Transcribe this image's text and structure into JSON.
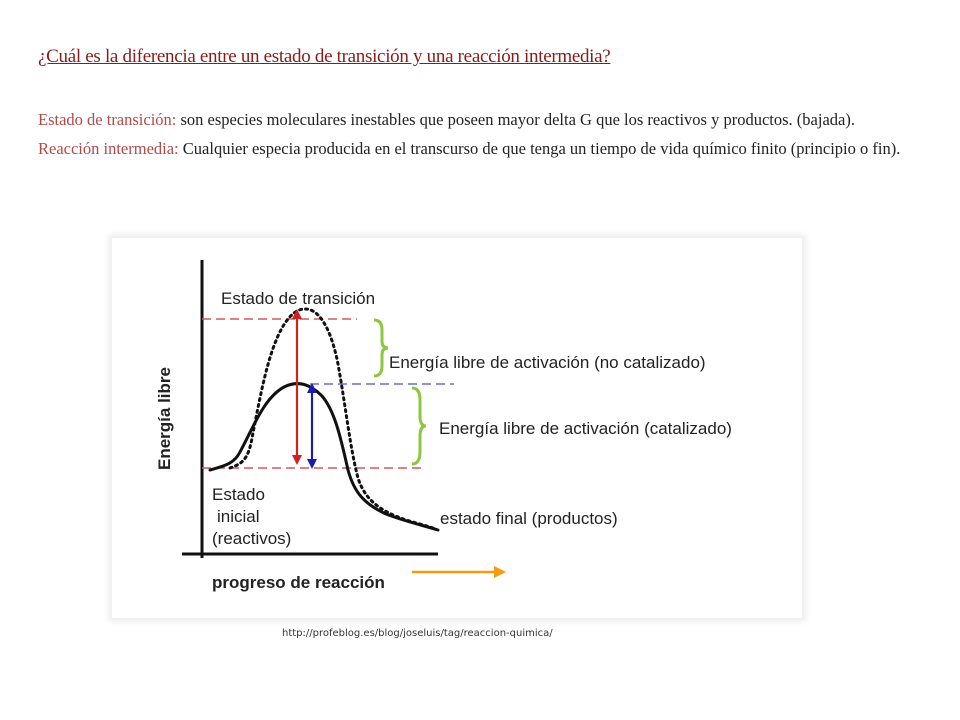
{
  "question": "¿Cuál es la diferencia entre un estado de transición y una reacción intermedia?",
  "definitions": {
    "transition_label": "Estado de transición:",
    "transition_text": " son especies moleculares inestables que poseen mayor delta G que los reactivos y productos. (bajada).",
    "intermediate_label": "Reacción intermedia:",
    "intermediate_text": " Cualquier especia producida en el transcurso de que tenga un tiempo de vida químico finito (principio o fin)."
  },
  "diagram": {
    "transition_state": "Estado de transición",
    "activation_uncatalyzed": "Energía libre de activación (no catalizado)",
    "activation_catalyzed": "Energía libre de activación  (catalizado)",
    "y_axis": "Energía libre",
    "initial_line1": "Estado",
    "initial_line2": "inicial",
    "initial_line3": "(reactivos)",
    "final_state": "estado final (productos)",
    "x_axis": "progreso de reacción",
    "colors": {
      "uncatalyzed_arrow": "#d22020",
      "catalyzed_arrow": "#1c1ca8",
      "dashed_red": "#d25a5a",
      "dashed_blue": "#6b6bd0",
      "brace": "#8dc63f",
      "progress_arrow": "#f39c12"
    }
  },
  "source_url": "http://profeblog.es/blog/joseluis/tag/reaccion-quimica/"
}
